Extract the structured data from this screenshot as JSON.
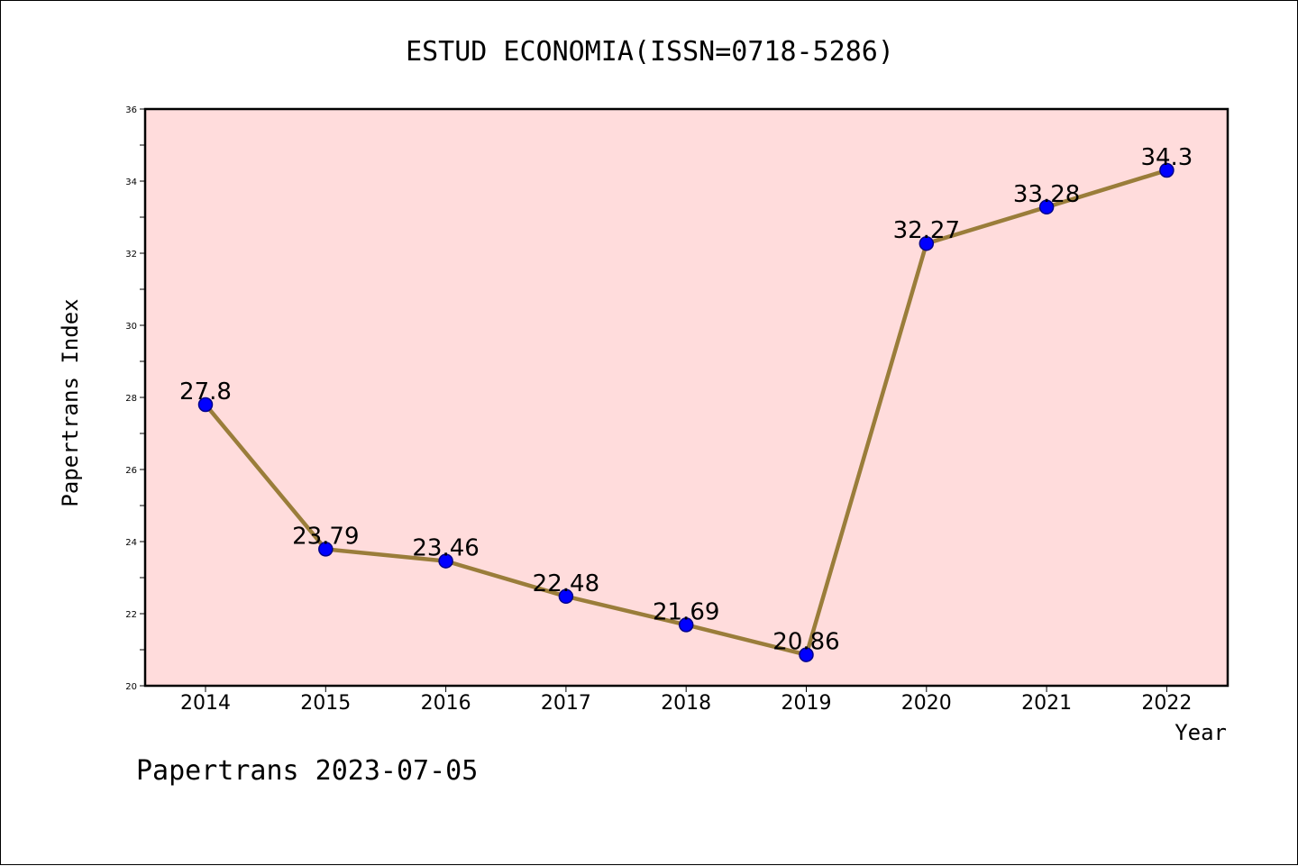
{
  "footer": "Papertrans 2023-07-05",
  "chart_data": {
    "type": "line",
    "title": "ESTUD ECONOMIA(ISSN=0718-5286)",
    "xlabel": "Year",
    "ylabel": "Papertrans Index",
    "x": [
      "2014",
      "2015",
      "2016",
      "2017",
      "2018",
      "2019",
      "2020",
      "2021",
      "2022"
    ],
    "series": [
      {
        "values": [
          27.8,
          23.79,
          23.46,
          22.48,
          21.69,
          20.86,
          32.27,
          33.28,
          34.3
        ],
        "labels": [
          "27.8",
          "23.79",
          "23.46",
          "22.48",
          "21.69",
          "20.86",
          "32.27",
          "33.28",
          "34.3"
        ]
      }
    ],
    "ylim": [
      20,
      36
    ],
    "yticks": [
      "20",
      "22",
      "24",
      "26",
      "28",
      "30",
      "32",
      "34",
      "36"
    ],
    "grid": false,
    "colors": {
      "plot_background": "#ffdcdc",
      "line": "#9a7d3a",
      "marker_fill": "#0000ff",
      "marker_edge": "#00008b"
    }
  }
}
